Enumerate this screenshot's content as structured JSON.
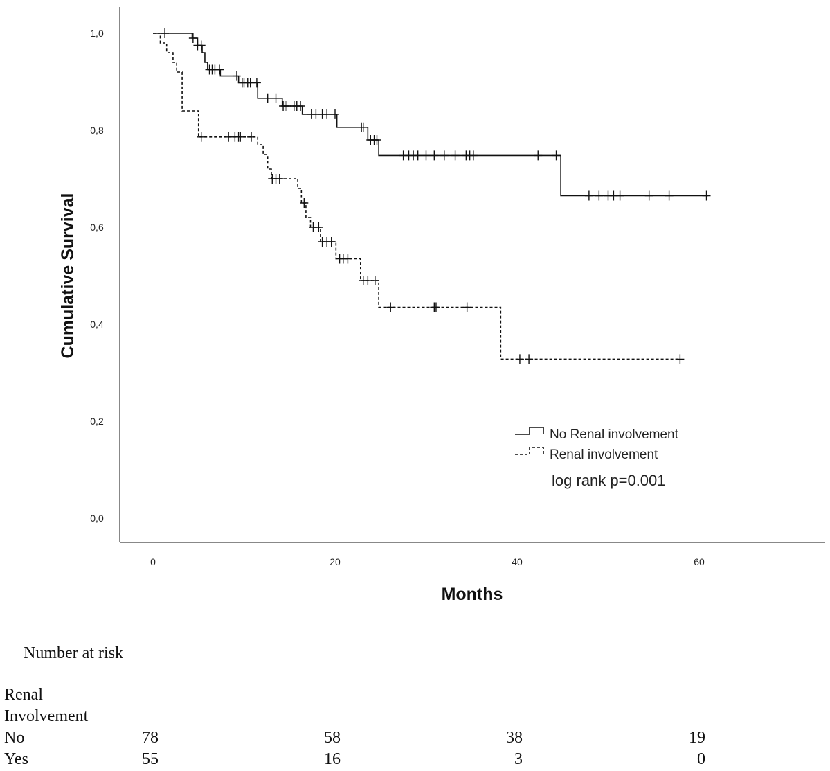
{
  "chart_data": {
    "type": "line",
    "subtype": "kaplan-meier",
    "title": "",
    "xlabel": "Months",
    "ylabel": "Cumulative Survival",
    "xlim": [
      -3.7,
      73.6
    ],
    "ylim": [
      -0.05,
      1.05
    ],
    "xticks": [
      0,
      20,
      40,
      60
    ],
    "xtick_labels": [
      "0",
      "20",
      "40",
      "60"
    ],
    "yticks": [
      0,
      0.2,
      0.4,
      0.6,
      0.8,
      1.0
    ],
    "ytick_labels": [
      "0,0",
      "0,2",
      "0,4",
      "0,6",
      "0,8",
      "1,0"
    ],
    "grid": false,
    "legend_position": "bottom-right",
    "annotation": "log rank p=0.001",
    "series": [
      {
        "name": "No Renal involvement",
        "style": "solid",
        "steps": [
          [
            0,
            1.0
          ],
          [
            4.3,
            0.99
          ],
          [
            4.9,
            0.975
          ],
          [
            5.4,
            0.96
          ],
          [
            5.7,
            0.94
          ],
          [
            6.0,
            0.925
          ],
          [
            7.4,
            0.912
          ],
          [
            9.4,
            0.898
          ],
          [
            11.5,
            0.866
          ],
          [
            14.2,
            0.85
          ],
          [
            16.4,
            0.833
          ],
          [
            20.2,
            0.806
          ],
          [
            23.6,
            0.78
          ],
          [
            24.8,
            0.748
          ],
          [
            44.8,
            0.665
          ]
        ],
        "end": 61.0,
        "censored": [
          1.3,
          4.4,
          4.9,
          5.3,
          6.2,
          6.5,
          6.8,
          7.3,
          9.2,
          9.8,
          10.0,
          10.4,
          10.7,
          11.4,
          12.6,
          13.5,
          14.3,
          14.5,
          14.7,
          15.5,
          15.8,
          16.2,
          17.4,
          17.9,
          18.6,
          19.1,
          20.0,
          22.9,
          23.1,
          23.9,
          24.3,
          24.6,
          27.5,
          28.1,
          28.6,
          29.1,
          30.0,
          30.9,
          32.0,
          33.2,
          34.4,
          34.8,
          35.2,
          42.3,
          44.3,
          47.9,
          49.0,
          50.0,
          50.6,
          51.3,
          54.5,
          56.7,
          60.8
        ]
      },
      {
        "name": "Renal involvement",
        "style": "dashed",
        "steps": [
          [
            0,
            1.0
          ],
          [
            0.8,
            0.98
          ],
          [
            1.5,
            0.96
          ],
          [
            2.2,
            0.94
          ],
          [
            2.6,
            0.92
          ],
          [
            3.2,
            0.84
          ],
          [
            5.0,
            0.786
          ],
          [
            11.5,
            0.77
          ],
          [
            12.1,
            0.75
          ],
          [
            12.6,
            0.72
          ],
          [
            13.0,
            0.7
          ],
          [
            15.9,
            0.68
          ],
          [
            16.3,
            0.65
          ],
          [
            16.8,
            0.62
          ],
          [
            17.3,
            0.6
          ],
          [
            18.4,
            0.57
          ],
          [
            20.1,
            0.535
          ],
          [
            22.8,
            0.49
          ],
          [
            24.8,
            0.435
          ],
          [
            38.2,
            0.328
          ]
        ],
        "end": 57.9,
        "censored": [
          5.3,
          8.3,
          9.0,
          9.4,
          9.6,
          10.8,
          13.1,
          13.5,
          13.9,
          16.6,
          17.6,
          18.2,
          18.6,
          19.1,
          19.6,
          20.5,
          20.9,
          21.4,
          23.1,
          23.6,
          24.4,
          26.1,
          30.9,
          31.1,
          34.5,
          40.3,
          41.3,
          57.9
        ]
      }
    ]
  },
  "risk_table": {
    "title": "Number at risk",
    "group_label_line1": "Renal",
    "group_label_line2": "Involvement",
    "timepoints": [
      0,
      20,
      40,
      60
    ],
    "rows": [
      {
        "label": "No",
        "values": [
          "78",
          "58",
          "38",
          "19"
        ]
      },
      {
        "label": "Yes",
        "values": [
          "55",
          "16",
          "3",
          "0"
        ]
      }
    ]
  }
}
